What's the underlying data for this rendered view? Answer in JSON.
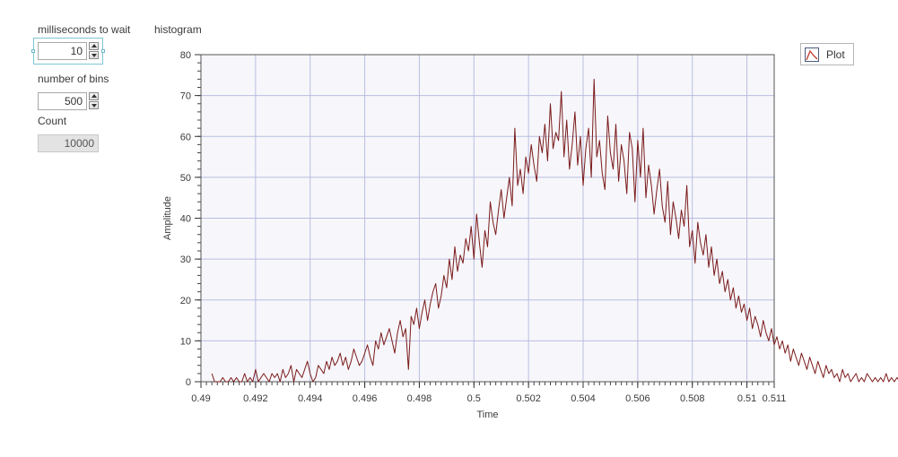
{
  "controls": {
    "wait_label": "milliseconds to wait",
    "wait_value": "10",
    "bins_label": "number of bins",
    "bins_value": "500",
    "count_label": "Count",
    "count_value": "10000"
  },
  "plot_button": {
    "label": "Plot"
  },
  "colors": {
    "series": "#7a1a1a",
    "grid": "#b9bde0",
    "plot_bg": "#f7f7fb"
  },
  "chart_data": {
    "type": "line",
    "title": "histogram",
    "xlabel": "Time",
    "ylabel": "Amplitude",
    "xlim": [
      0.49,
      0.511
    ],
    "ylim": [
      0,
      80
    ],
    "x_ticks": [
      0.49,
      0.492,
      0.494,
      0.496,
      0.498,
      0.5,
      0.502,
      0.504,
      0.506,
      0.508,
      0.51,
      0.511
    ],
    "x_tick_labels": [
      "0.49",
      "0.492",
      "0.494",
      "0.496",
      "0.498",
      "0.5",
      "0.502",
      "0.504",
      "0.506",
      "0.508",
      "0.51",
      "0.511"
    ],
    "y_ticks": [
      0,
      10,
      20,
      30,
      40,
      50,
      60,
      70,
      80
    ],
    "y_tick_labels": [
      "0",
      "10",
      "20",
      "30",
      "40",
      "50",
      "60",
      "70",
      "80"
    ],
    "grid": true,
    "series": [
      {
        "x_start": 0.4904,
        "x_step": 0.0001,
        "values": [
          2,
          0,
          0,
          0,
          1,
          0,
          0,
          1,
          0,
          1,
          0,
          0,
          2,
          0,
          1,
          0,
          3,
          0,
          1,
          2,
          1,
          0,
          2,
          1,
          2,
          0,
          3,
          1,
          2,
          4,
          0,
          3,
          2,
          1,
          3,
          5,
          2,
          0,
          1,
          4,
          3,
          2,
          5,
          3,
          6,
          4,
          5,
          7,
          4,
          6,
          3,
          5,
          8,
          6,
          4,
          5,
          7,
          9,
          6,
          4,
          10,
          8,
          12,
          9,
          11,
          13,
          10,
          7,
          12,
          15,
          11,
          13,
          3,
          16,
          14,
          18,
          13,
          17,
          20,
          15,
          19,
          22,
          24,
          18,
          21,
          26,
          23,
          30,
          25,
          33,
          27,
          31,
          29,
          35,
          32,
          38,
          30,
          41,
          34,
          28,
          37,
          33,
          44,
          39,
          36,
          42,
          47,
          40,
          45,
          50,
          43,
          62,
          48,
          52,
          46,
          55,
          51,
          58,
          53,
          49,
          60,
          56,
          63,
          54,
          68,
          57,
          61,
          59,
          71,
          55,
          64,
          52,
          58,
          66,
          53,
          60,
          48,
          57,
          62,
          50,
          74,
          55,
          59,
          51,
          47,
          65,
          56,
          52,
          63,
          49,
          58,
          54,
          46,
          61,
          57,
          44,
          59,
          50,
          62,
          45,
          53,
          48,
          41,
          47,
          52,
          43,
          39,
          49,
          36,
          44,
          40,
          35,
          42,
          38,
          48,
          33,
          37,
          29,
          39,
          34,
          31,
          36,
          28,
          33,
          26,
          30,
          24,
          27,
          22,
          25,
          20,
          23,
          18,
          21,
          17,
          19,
          15,
          18,
          13,
          16,
          14,
          11,
          15,
          12,
          10,
          13,
          9,
          11,
          8,
          10,
          7,
          9,
          5,
          8,
          6,
          4,
          7,
          5,
          3,
          6,
          4,
          2,
          5,
          3,
          1,
          4,
          2,
          3,
          1,
          2,
          0,
          3,
          1,
          2,
          0,
          1,
          2,
          0,
          1,
          0,
          2,
          1,
          0,
          1,
          0,
          1,
          0,
          2,
          0,
          1,
          0,
          1,
          0,
          1,
          0,
          0,
          1,
          0,
          0,
          1,
          0,
          1,
          0,
          0,
          1,
          0
        ]
      }
    ]
  }
}
